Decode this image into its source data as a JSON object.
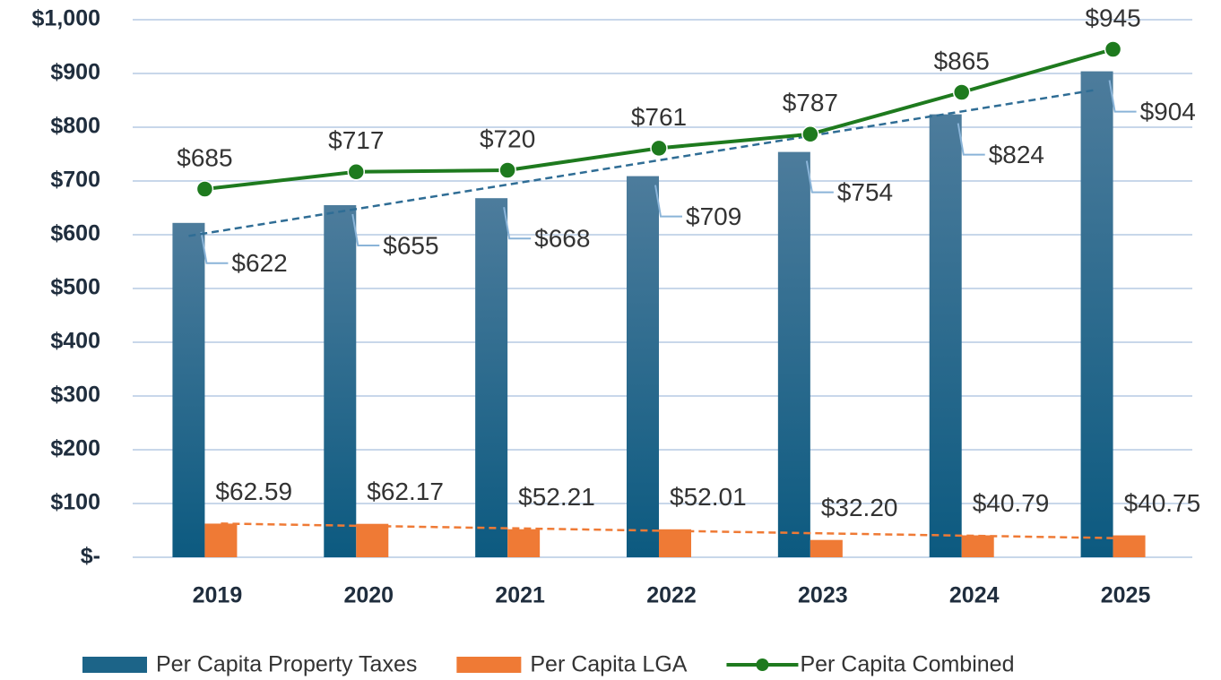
{
  "chart_data": {
    "type": "bar",
    "categories": [
      "2019",
      "2020",
      "2021",
      "2022",
      "2023",
      "2024",
      "2025"
    ],
    "series": [
      {
        "name": "Per Capita Property Taxes",
        "type": "bar",
        "color": "#115f85",
        "trendline": true,
        "trendline_color": "#2f6d95",
        "values": [
          622,
          655,
          668,
          709,
          754,
          824,
          904
        ],
        "value_labels": [
          "$622",
          "$655",
          "$668",
          "$709",
          "$754",
          "$824",
          "$904"
        ]
      },
      {
        "name": "Per Capita LGA",
        "type": "bar",
        "color": "#ef7a35",
        "trendline": true,
        "trendline_color": "#ef7a35",
        "values": [
          62.59,
          62.17,
          52.21,
          52.01,
          32.2,
          40.79,
          40.75
        ],
        "value_labels": [
          "$62.59",
          "$62.17",
          "$52.21",
          "$52.01",
          "$32.20",
          "$40.79",
          "$40.75"
        ]
      },
      {
        "name": "Per Capita Combined",
        "type": "line",
        "color": "#1e7a1e",
        "values": [
          685,
          717,
          720,
          761,
          787,
          865,
          945
        ],
        "value_labels": [
          "$685",
          "$717",
          "$720",
          "$761",
          "$787",
          "$865",
          "$945"
        ]
      }
    ],
    "ylim": [
      0,
      1000
    ],
    "yticks": [
      {
        "value": 0,
        "label": "$-"
      },
      {
        "value": 100,
        "label": "$100"
      },
      {
        "value": 200,
        "label": "$200"
      },
      {
        "value": 300,
        "label": "$300"
      },
      {
        "value": 400,
        "label": "$400"
      },
      {
        "value": 500,
        "label": "$500"
      },
      {
        "value": 600,
        "label": "$600"
      },
      {
        "value": 700,
        "label": "$700"
      },
      {
        "value": 800,
        "label": "$800"
      },
      {
        "value": 900,
        "label": "$900"
      },
      {
        "value": 1000,
        "label": "$1,000"
      }
    ],
    "grid": true,
    "legend": "bottom"
  }
}
